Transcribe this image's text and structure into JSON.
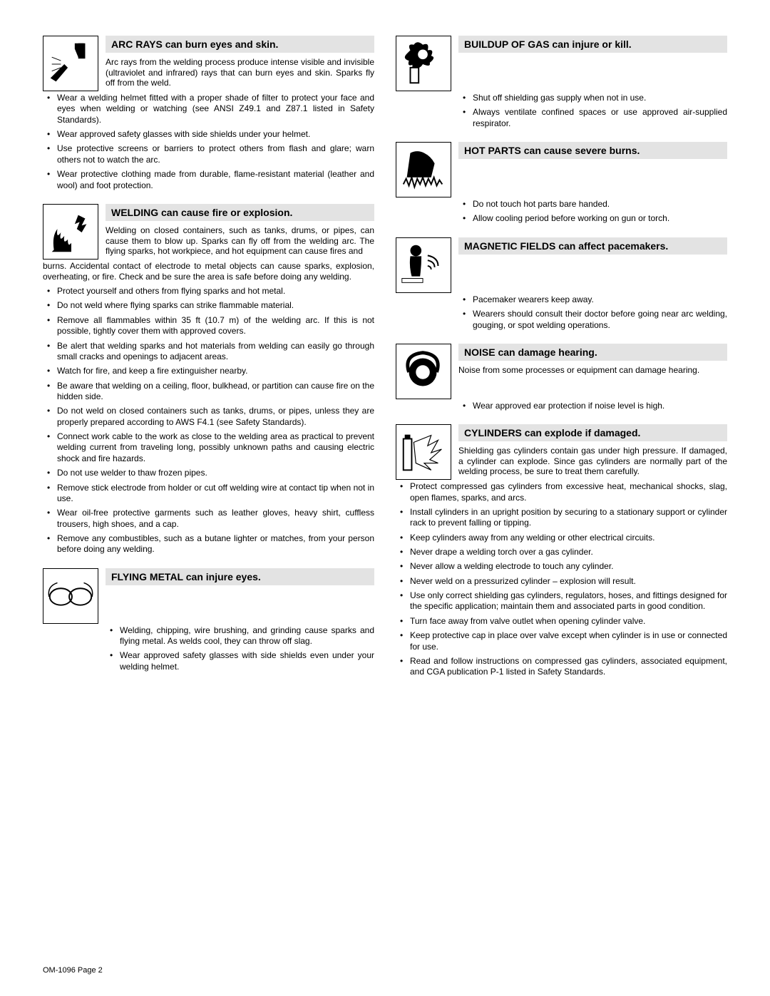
{
  "footer": "OM-1096 Page 2",
  "colors": {
    "heading_bg": "#e3e3e3",
    "text": "#000000"
  },
  "left": [
    {
      "id": "arc-rays",
      "icon": "arc-rays-icon",
      "heading": "ARC RAYS can burn eyes and skin.",
      "intro": "Arc rays from the welding process produce intense visible and invisible (ultraviolet and infrared) rays that can burn eyes and skin. Sparks fly off from the weld.",
      "intro_wrap": false,
      "bullets_indented": false,
      "bullets": [
        "Wear a welding helmet fitted with a proper shade of filter to protect your face and eyes when welding or watching (see ANSI Z49.1 and Z87.1 listed in Safety Standards).",
        "Wear approved safety glasses with side shields under your helmet.",
        "Use protective screens or barriers to protect others from flash and glare; warn others not to watch the arc.",
        "Wear protective clothing made from durable, flame-resistant material (leather and wool) and foot protection."
      ]
    },
    {
      "id": "welding-fire",
      "icon": "fire-icon",
      "heading": "WELDING can cause fire or explosion.",
      "intro": "Welding on closed containers, such as tanks, drums, or pipes, can cause them to blow up. Sparks can fly off from the welding arc. The flying sparks, hot workpiece, and hot equipment can cause fires and",
      "intro_wrap": true,
      "intro_wrap_text": "burns. Accidental contact of electrode to metal objects can cause sparks, explosion, overheating, or fire. Check and be sure the area is safe before doing any welding.",
      "bullets_indented": false,
      "bullets": [
        "Protect yourself and others from flying sparks and hot metal.",
        "Do not weld where flying sparks can strike flammable material.",
        "Remove all flammables within 35 ft (10.7 m) of the welding arc. If this is not possible, tightly cover them with approved covers.",
        "Be alert that welding sparks and hot materials from welding can easily go through small cracks and openings to adjacent areas.",
        "Watch for fire, and keep a fire extinguisher nearby.",
        "Be aware that welding on a ceiling, floor, bulkhead, or partition can cause fire on the hidden side.",
        "Do not weld on closed containers such as tanks, drums, or pipes, unless they are properly prepared according to AWS F4.1 (see Safety Standards).",
        "Connect work cable to the work as close to the welding area as practical to prevent welding current from traveling long, possibly unknown paths and causing electric shock and fire hazards.",
        "Do not use welder to thaw frozen pipes.",
        "Remove stick electrode from holder or cut off welding wire at contact tip when not in use.",
        "Wear oil-free protective garments such as leather gloves, heavy shirt, cuffless trousers, high shoes, and a cap.",
        "Remove any combustibles, such as a butane lighter or matches, from your person before doing any welding."
      ]
    },
    {
      "id": "flying-metal",
      "icon": "goggles-icon",
      "heading": "FLYING METAL can injure eyes.",
      "intro": null,
      "bullets_indented": true,
      "bullets": [
        "Welding, chipping, wire brushing, and grinding cause sparks and flying metal. As welds cool, they can throw off slag.",
        "Wear approved safety glasses with side shields even under your welding helmet."
      ]
    }
  ],
  "right": [
    {
      "id": "gas-buildup",
      "icon": "gas-icon",
      "heading": "BUILDUP OF GAS can injure or kill.",
      "intro": null,
      "bullets_indented": true,
      "bullets": [
        "Shut off shielding gas supply when not in use.",
        "Always ventilate confined spaces or use approved air-supplied respirator."
      ]
    },
    {
      "id": "hot-parts",
      "icon": "hot-parts-icon",
      "heading": "HOT PARTS can cause severe burns.",
      "intro": null,
      "bullets_indented": true,
      "bullets": [
        "Do not touch hot parts bare handed.",
        "Allow cooling period before working on gun or torch."
      ]
    },
    {
      "id": "magnetic",
      "icon": "magnetic-icon",
      "heading": "MAGNETIC  FIELDS can affect pacemakers.",
      "intro": null,
      "bullets_indented": true,
      "bullets": [
        "Pacemaker wearers keep away.",
        "Wearers should consult their doctor before going near arc welding, gouging, or spot welding operations."
      ]
    },
    {
      "id": "noise",
      "icon": "noise-icon",
      "heading": "NOISE can damage hearing.",
      "intro": "Noise from some processes or equipment can damage hearing.",
      "bullets_indented": true,
      "bullets": [
        "Wear approved ear protection if noise level is high."
      ]
    },
    {
      "id": "cylinders",
      "icon": "cylinder-icon",
      "heading": "CYLINDERS can explode if damaged.",
      "intro": "Shielding gas cylinders contain gas under high pressure. If damaged, a cylinder can explode. Since gas cylinders are normally part of the welding process, be sure to treat them carefully.",
      "bullets_indented": false,
      "bullets": [
        "Protect compressed gas cylinders from excessive heat, mechanical shocks, slag, open flames, sparks, and arcs.",
        "Install cylinders in an upright position by securing to a stationary support or cylinder rack to prevent falling or tipping.",
        "Keep cylinders away from any welding or other electrical circuits.",
        "Never drape a welding torch over a gas cylinder.",
        "Never allow a welding electrode to touch any cylinder.",
        "Never weld on a pressurized cylinder – explosion will result.",
        "Use only correct shielding gas cylinders, regulators, hoses, and fittings designed for the specific application; maintain them and associated parts in good condition.",
        "Turn face away from valve outlet when opening cylinder valve.",
        "Keep protective cap in place over valve except when cylinder is in use or connected for use.",
        "Read and follow instructions on compressed gas cylinders, associated equipment, and CGA publication P-1 listed in Safety Standards."
      ]
    }
  ],
  "icons": {
    "arc-rays-icon": "<rect x='6' y='6' width='66' height='66' fill='none'/><path d='M45 10 L58 10 L58 30 L50 30 L45 18 Z' fill='#000'/><rect x='50' y='10' width='10' height='22' fill='#000'/><path d='M10 60 L30 40 L35 45 L18 65 Z' fill='#000'/><line x1='12' y1='30' x2='25' y2='35' stroke='#000'/><line x1='12' y1='40' x2='25' y2='40' stroke='#000'/><line x1='12' y1='50' x2='25' y2='45' stroke='#000'/>",
    "fire-icon": "<path d='M15 65 Q12 45 20 35 Q18 50 25 40 Q22 55 30 45 Q28 58 35 50 Q35 62 40 55 L40 68 L12 68 Z' fill='#000'/><path d='M50 15 L60 20 L55 30 L62 28 L55 40 L48 35 L52 25 L45 28 Z' fill='#000'/>",
    "goggles-icon": "<ellipse cx='25' cy='40' rx='16' ry='12' fill='none' stroke='#000' stroke-width='2'/><ellipse cx='53' cy='40' rx='16' ry='12' fill='none' stroke='#000' stroke-width='2'/><path d='M8 40 Q5 25 20 20' fill='none' stroke='#000' stroke-width='1.5'/><path d='M70 40 Q73 25 58 20' fill='none' stroke='#000' stroke-width='1.5'/>",
    "gas-icon": "<path d='M20 20 Q15 10 25 12 Q30 5 38 12 Q48 8 45 20 Q55 18 50 28 Q58 30 48 38 Q50 45 38 40 Q32 50 25 40 Q15 45 18 35 Q8 32 15 25 Z' fill='#000'/><circle cx='38' cy='26' r='7' fill='#fff'/><rect x='20' y='45' width='12' height='22' fill='none' stroke='#000' stroke-width='2'/><rect x='23' y='40' width='6' height='5' fill='#000'/>",
    "hot-parts-icon": "<path d='M20 15 Q30 10 40 15 Q50 20 55 30 L50 50 L15 50 Z' fill='#000'/><path d='M10 60 L14 52 L18 62 L22 50 L26 64 L30 52 L34 60 L38 50 L42 62 L46 52 L50 60 L54 50 L58 62 L62 54 L66 60' fill='none' stroke='#000' stroke-width='2'/>",
    "magnetic-icon": "<circle cx='28' cy='18' r='8' fill='#000'/><path d='M20 26 Q18 40 22 55 L34 55 Q36 40 36 26 Z' fill='#000'/><path d='M45 25 Q60 28 60 40' fill='none' stroke='#000' stroke-width='2'/><path d='M45 32 Q55 34 55 42' fill='none' stroke='#000' stroke-width='2'/><path d='M45 40 Q50 41 50 45' fill='none' stroke='#000' stroke-width='2'/><rect x='8' y='58' width='30' height='6' fill='none' stroke='#000'/>",
    "noise-icon": "<circle cx='38' cy='40' r='20' fill='#000'/><circle cx='38' cy='40' r='10' fill='#fff'/><path d='M18 40 Q10 15 38 12 Q66 15 58 40' fill='none' stroke='#000' stroke-width='5'/>",
    "cylinder-icon": "<rect x='10' y='20' width='12' height='45' fill='none' stroke='#000' stroke-width='2'/><rect x='12' y='14' width='8' height='6' fill='#000'/><path d='M25 25 L50 15 L45 30 L60 22 L50 40 L65 35 L48 50 L60 55 L40 55 L50 65 L28 55 Z' fill='none' stroke='#000' stroke-width='1.2'/>"
  }
}
